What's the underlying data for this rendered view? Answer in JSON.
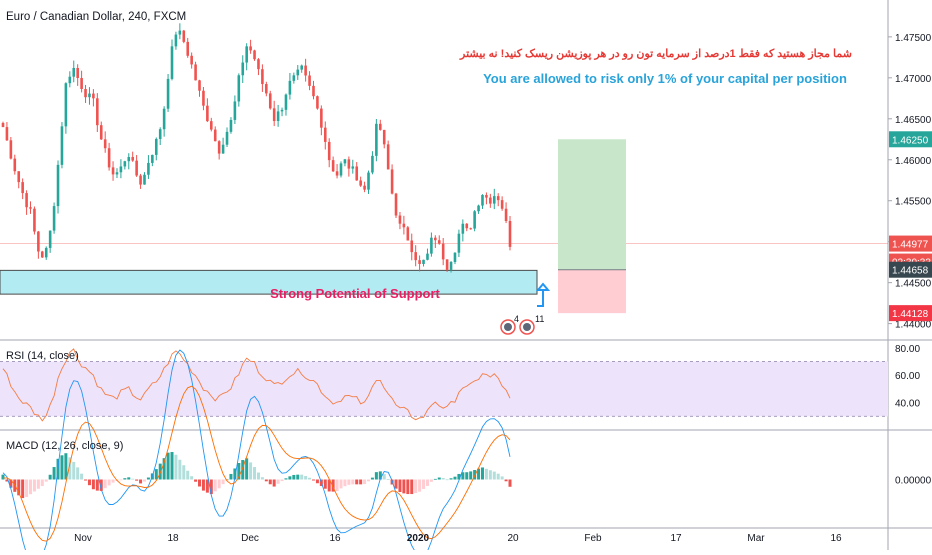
{
  "header": {
    "symbol": "Euro / Canadian Dollar, 240, FXCM"
  },
  "annotations": {
    "persian_note": "شما مجاز هستید که فقط 1درصد از سرمایه تون رو در هر پوزیشن ریسک کنید! نه بیشتر",
    "english_note": "You are allowed to risk only 1% of your capital per position",
    "support_label": "Strong Potential of Support",
    "event_count_a": "4",
    "event_count_b": "11"
  },
  "price_axis": {
    "ticks": [
      "1.47500",
      "1.47000",
      "1.46500",
      "1.46000",
      "1.45500",
      "1.45000",
      "1.44500",
      "1.44000"
    ],
    "badges": [
      {
        "value": "1.46250",
        "color": "#26a69a"
      },
      {
        "value": "1.44977",
        "color": "#ef5350"
      },
      {
        "value": "02:30:33",
        "color": "#ef5350"
      },
      {
        "value": "1.44658",
        "color": "#37474f"
      },
      {
        "value": "1.44128",
        "color": "#f23645"
      }
    ]
  },
  "rsi": {
    "label": "RSI (14, close)",
    "ticks": [
      "80.00",
      "60.00",
      "40.00"
    ],
    "band": [
      30,
      70
    ],
    "color": "#f57c43"
  },
  "macd": {
    "label": "MACD (12, 26, close, 9)",
    "tick": "0.00000",
    "macd_color": "#2196f3",
    "signal_color": "#ff6d00"
  },
  "time_axis": {
    "labels": [
      "Nov",
      "18",
      "Dec",
      "16",
      "2020",
      "20",
      "Feb",
      "17",
      "Mar",
      "16"
    ]
  },
  "position": {
    "entry": 1.44658,
    "target": 1.4625,
    "stop": 1.44128,
    "profit_color": "#c8e6c9",
    "loss_color": "#ffcdd2"
  },
  "support_zone": {
    "top": 1.4465,
    "bottom": 1.4436,
    "color": "#b2ebf2"
  },
  "colors": {
    "up": "#26a69a",
    "down": "#ef5350",
    "persian_text": "#e53935",
    "english_text": "#29a3d9",
    "support_text": "#e91e63"
  },
  "chart_data": {
    "type": "candlestick",
    "title": "Euro / Canadian Dollar, 240, FXCM",
    "ylim": [
      1.438,
      1.4795
    ],
    "x_labels": [
      "Nov",
      "18",
      "Dec",
      "16",
      "2020",
      "20",
      "Feb",
      "17",
      "Mar",
      "16"
    ],
    "close_path": [
      1.464,
      1.461,
      1.458,
      1.4555,
      1.4535,
      1.449,
      1.448,
      1.452,
      1.46,
      1.469,
      1.4715,
      1.4695,
      1.468,
      1.467,
      1.463,
      1.46,
      1.458,
      1.459,
      1.461,
      1.4585,
      1.457,
      1.46,
      1.462,
      1.465,
      1.472,
      1.476,
      1.4745,
      1.472,
      1.469,
      1.466,
      1.464,
      1.461,
      1.463,
      1.465,
      1.47,
      1.474,
      1.473,
      1.47,
      1.468,
      1.465,
      1.466,
      1.469,
      1.47,
      1.471,
      1.469,
      1.467,
      1.464,
      1.46,
      1.458,
      1.46,
      1.459,
      1.458,
      1.456,
      1.46,
      1.465,
      1.461,
      1.456,
      1.452,
      1.451,
      1.449,
      1.447,
      1.448,
      1.451,
      1.449,
      1.447,
      1.449,
      1.452,
      1.451,
      1.454,
      1.456,
      1.455,
      1.456,
      1.454,
      1.4498
    ],
    "rsi": {
      "ylim": [
        20,
        85
      ],
      "values": [
        65,
        55,
        45,
        40,
        36,
        30,
        28,
        40,
        60,
        72,
        80,
        70,
        65,
        60,
        50,
        45,
        43,
        47,
        50,
        45,
        42,
        50,
        55,
        62,
        72,
        78,
        72,
        65,
        58,
        50,
        46,
        42,
        48,
        52,
        62,
        72,
        70,
        62,
        58,
        52,
        55,
        60,
        62,
        63,
        58,
        55,
        48,
        42,
        40,
        45,
        44,
        42,
        38,
        48,
        62,
        50,
        42,
        35,
        34,
        30,
        28,
        32,
        42,
        38,
        35,
        42,
        52,
        50,
        55,
        62,
        58,
        60,
        52,
        42
      ]
    },
    "macd": {
      "ylim": [
        -0.002,
        0.002
      ],
      "histogram": [
        0.0002,
        -0.0003,
        -0.0006,
        -0.0008,
        -0.0006,
        -0.0004,
        -0.0002,
        0.0003,
        0.0009,
        0.0011,
        0.0008,
        0.0004,
        -0.0001,
        -0.0004,
        -0.0005,
        -0.0003,
        -0.0001,
        0.0,
        0.0001,
        0.0,
        -0.0002,
        0.0001,
        0.0004,
        0.0008,
        0.0012,
        0.001,
        0.0006,
        0.0002,
        -0.0002,
        -0.0005,
        -0.0006,
        -0.0004,
        -0.0001,
        0.0003,
        0.0007,
        0.0009,
        0.0006,
        0.0002,
        -0.0001,
        -0.0003,
        -0.0001,
        0.0001,
        0.0002,
        0.0002,
        0.0001,
        -0.0001,
        -0.0003,
        -0.0005,
        -0.0005,
        -0.0003,
        -0.0002,
        -0.0002,
        -0.0002,
        0.0,
        0.0004,
        0.0002,
        -0.0002,
        -0.0005,
        -0.0006,
        -0.0006,
        -0.0005,
        -0.0003,
        0.0,
        0.0001,
        0.0,
        0.0001,
        0.0003,
        0.0003,
        0.0004,
        0.0005,
        0.0004,
        0.0003,
        0.0001,
        -0.0003
      ]
    }
  }
}
